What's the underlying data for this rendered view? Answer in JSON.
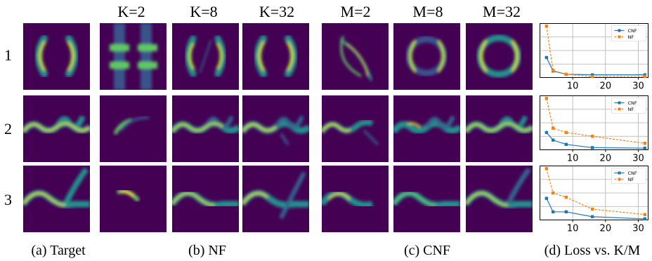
{
  "column_headers": [
    "K=2",
    "K=8",
    "K=32",
    "M=2",
    "M=8",
    "M=32"
  ],
  "row_labels": [
    "1",
    "2",
    "3"
  ],
  "captions": {
    "target": "(a) Target",
    "nf": "(b) NF",
    "cnf": "(c) CNF",
    "loss": "(d) Loss vs. K/M"
  },
  "colors": {
    "panel_bg": "#440154",
    "cnf": "#1f77b4",
    "nf": "#ff7f0e"
  },
  "chart_data": [
    {
      "type": "line",
      "x": [
        2,
        4,
        8,
        16,
        32
      ],
      "x_tick_labels": [
        "10",
        "20",
        "30"
      ],
      "xlim": [
        0,
        33
      ],
      "ylim": [
        0,
        1
      ],
      "grid": true,
      "legend_position": "top-right",
      "series": [
        {
          "name": "CNF",
          "values": [
            0.37,
            0.12,
            0.06,
            0.05,
            0.05
          ]
        },
        {
          "name": "NF",
          "values": [
            0.95,
            0.13,
            0.06,
            0.02,
            0.02
          ]
        }
      ]
    },
    {
      "type": "line",
      "x": [
        2,
        4,
        8,
        16,
        32
      ],
      "x_tick_labels": [
        "10",
        "20",
        "30"
      ],
      "xlim": [
        0,
        33
      ],
      "ylim": [
        0,
        1
      ],
      "grid": true,
      "legend_position": "top-right",
      "series": [
        {
          "name": "CNF",
          "values": [
            0.32,
            0.18,
            0.1,
            0.04,
            0.03
          ]
        },
        {
          "name": "NF",
          "values": [
            0.95,
            0.4,
            0.32,
            0.25,
            0.12
          ]
        }
      ]
    },
    {
      "type": "line",
      "x": [
        2,
        4,
        8,
        16,
        32
      ],
      "x_tick_labels": [
        "10",
        "20",
        "30"
      ],
      "xlim": [
        0,
        33
      ],
      "ylim": [
        0,
        1
      ],
      "grid": true,
      "legend_position": "top-right",
      "series": [
        {
          "name": "CNF",
          "values": [
            0.4,
            0.15,
            0.15,
            0.06,
            0.02
          ]
        },
        {
          "name": "NF",
          "values": [
            0.95,
            0.5,
            0.42,
            0.2,
            0.1
          ]
        }
      ]
    }
  ]
}
